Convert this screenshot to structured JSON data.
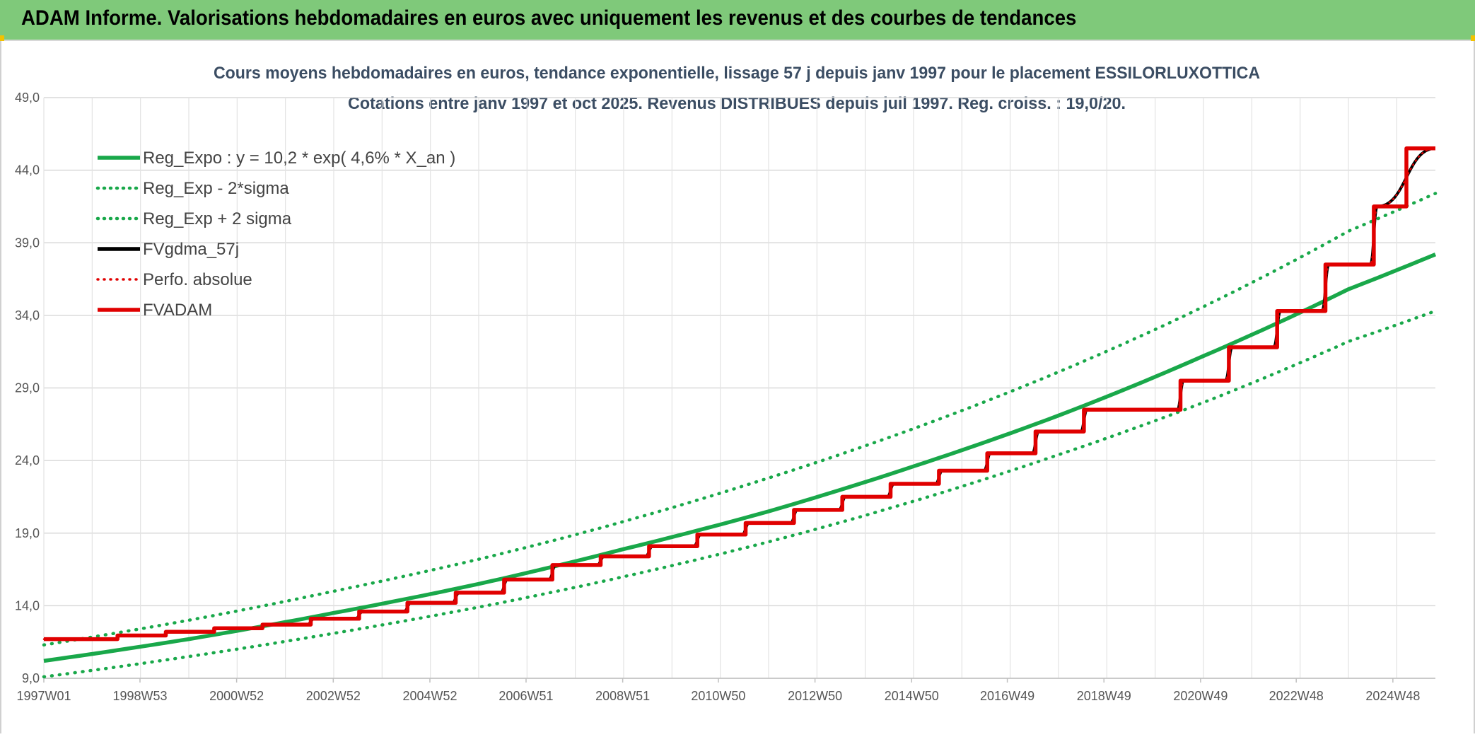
{
  "header": {
    "title": "ADAM Informe. Valorisations hebdomadaires en euros avec uniquement les revenus et des courbes de tendances"
  },
  "colors": {
    "header_bg": "#7fc97a",
    "green": "#19a84a",
    "black": "#000000",
    "red": "#e00000"
  },
  "chart_data": {
    "type": "line",
    "title": "Cours moyens hebdomadaires en euros, tendance exponentielle, lissage 57 j depuis janv 1997 pour le placement ESSILORLUXOTTICA",
    "subtitle": "Cotations entre janv 1997 et oct 2025. Revenus DISTRIBUES depuis juil 1997. Reg. croiss. : 19,0/20.",
    "xlabel": "",
    "ylabel": "",
    "x_range": [
      1997.0,
      2025.8
    ],
    "ylim": [
      9.0,
      49.0
    ],
    "y_ticks": [
      "9,0",
      "14,0",
      "19,0",
      "24,0",
      "29,0",
      "34,0",
      "39,0",
      "44,0",
      "49,0"
    ],
    "x_tick_labels": [
      {
        "label": "1997W01",
        "year": 1997.0
      },
      {
        "label": "1998W53",
        "year": 1998.99
      },
      {
        "label": "2000W52",
        "year": 2000.99
      },
      {
        "label": "2002W52",
        "year": 2002.99
      },
      {
        "label": "2004W52",
        "year": 2004.99
      },
      {
        "label": "2006W51",
        "year": 2006.98
      },
      {
        "label": "2008W51",
        "year": 2008.98
      },
      {
        "label": "2010W50",
        "year": 2010.96
      },
      {
        "label": "2012W50",
        "year": 2012.96
      },
      {
        "label": "2014W50",
        "year": 2014.96
      },
      {
        "label": "2016W49",
        "year": 2016.94
      },
      {
        "label": "2018W49",
        "year": 2018.94
      },
      {
        "label": "2020W49",
        "year": 2020.94
      },
      {
        "label": "2022W48",
        "year": 2022.92
      },
      {
        "label": "2024W48",
        "year": 2024.92
      }
    ],
    "grid": true,
    "legend_placement": "top-left",
    "series": [
      {
        "name": "Reg_Expo : y = 10,2 * exp( 4,6% *  X_an )",
        "color": "#19a84a",
        "style": "solid",
        "x": [
          1997.0,
          2000.0,
          2003.0,
          2006.0,
          2009.0,
          2012.0,
          2015.0,
          2018.0,
          2021.0,
          2024.0,
          2025.8
        ],
        "values": [
          10.2,
          11.7,
          13.5,
          15.5,
          17.9,
          20.5,
          23.6,
          27.1,
          31.2,
          35.8,
          38.2
        ]
      },
      {
        "name": "Reg_Exp - 2*sigma",
        "color": "#19a84a",
        "style": "dotted",
        "x": [
          1997.0,
          2000.0,
          2003.0,
          2006.0,
          2009.0,
          2012.0,
          2015.0,
          2018.0,
          2021.0,
          2024.0,
          2025.8
        ],
        "values": [
          9.1,
          10.5,
          12.1,
          13.9,
          16.0,
          18.4,
          21.2,
          24.4,
          28.0,
          32.2,
          34.3
        ]
      },
      {
        "name": "Reg_Exp + 2 sigma",
        "color": "#19a84a",
        "style": "dotted",
        "x": [
          1997.0,
          2000.0,
          2003.0,
          2006.0,
          2009.0,
          2012.0,
          2015.0,
          2018.0,
          2021.0,
          2024.0,
          2025.8
        ],
        "values": [
          11.3,
          13.0,
          15.0,
          17.2,
          19.8,
          22.8,
          26.2,
          30.1,
          34.6,
          39.8,
          42.4
        ]
      },
      {
        "name": "FVgdma_57j",
        "color": "#000000",
        "style": "solid",
        "x": [
          1997.0,
          1998.45,
          1998.6,
          1999.45,
          1999.6,
          2000.45,
          2000.6,
          2001.45,
          2001.6,
          2002.45,
          2002.6,
          2003.45,
          2003.6,
          2004.45,
          2004.6,
          2005.45,
          2005.6,
          2006.45,
          2006.6,
          2007.45,
          2007.6,
          2008.45,
          2008.6,
          2009.45,
          2009.6,
          2010.45,
          2010.6,
          2011.45,
          2011.6,
          2012.45,
          2012.6,
          2013.45,
          2013.6,
          2014.45,
          2014.6,
          2015.45,
          2015.6,
          2016.45,
          2016.6,
          2017.45,
          2017.6,
          2018.45,
          2018.6,
          2020.45,
          2020.6,
          2021.45,
          2021.6,
          2022.45,
          2022.6,
          2023.45,
          2023.6,
          2024.45,
          2024.6,
          2025.8
        ],
        "values": [
          11.7,
          11.7,
          11.95,
          11.95,
          12.2,
          12.2,
          12.45,
          12.45,
          12.7,
          12.7,
          13.1,
          13.1,
          13.6,
          13.6,
          14.2,
          14.2,
          14.9,
          14.9,
          15.8,
          15.8,
          16.8,
          16.8,
          17.4,
          17.4,
          18.1,
          18.1,
          18.9,
          18.9,
          19.7,
          19.7,
          20.6,
          20.6,
          21.5,
          21.5,
          22.4,
          22.4,
          23.3,
          23.3,
          24.5,
          24.5,
          26.0,
          26.0,
          27.5,
          27.5,
          29.5,
          29.5,
          31.8,
          31.8,
          34.3,
          34.3,
          37.5,
          37.5,
          41.5,
          45.5
        ]
      },
      {
        "name": "Perfo. absolue",
        "color": "#e00000",
        "style": "dotted",
        "x": [
          1997.0,
          1998.45,
          1998.6,
          1999.45,
          1999.6,
          2000.45,
          2000.6,
          2001.45,
          2001.6,
          2002.45,
          2002.6,
          2003.45,
          2003.6,
          2004.45,
          2004.6,
          2005.45,
          2005.6,
          2006.45,
          2006.6,
          2007.45,
          2007.6,
          2008.45,
          2008.6,
          2009.45,
          2009.6,
          2010.45,
          2010.6,
          2011.45,
          2011.6,
          2012.45,
          2012.6,
          2013.45,
          2013.6,
          2014.45,
          2014.6,
          2015.45,
          2015.6,
          2016.45,
          2016.6,
          2017.45,
          2017.6,
          2018.45,
          2018.6,
          2020.45,
          2020.6,
          2021.45,
          2021.6,
          2022.45,
          2022.6,
          2023.45,
          2023.6,
          2024.45,
          2024.6,
          2025.8
        ],
        "values": [
          11.7,
          11.7,
          11.95,
          11.95,
          12.2,
          12.2,
          12.45,
          12.45,
          12.7,
          12.7,
          13.1,
          13.1,
          13.6,
          13.6,
          14.2,
          14.2,
          14.9,
          14.9,
          15.8,
          15.8,
          16.8,
          16.8,
          17.4,
          17.4,
          18.1,
          18.1,
          18.9,
          18.9,
          19.7,
          19.7,
          20.6,
          20.6,
          21.5,
          21.5,
          22.4,
          22.4,
          23.3,
          23.3,
          24.5,
          24.5,
          26.0,
          26.0,
          27.5,
          27.5,
          29.5,
          29.5,
          31.8,
          31.8,
          34.3,
          34.3,
          37.5,
          37.5,
          41.5,
          45.5
        ]
      },
      {
        "name": "FVADAM",
        "color": "#e00000",
        "style": "step",
        "x": [
          1997.0,
          1998.45,
          1998.6,
          1999.45,
          1999.6,
          2000.45,
          2000.6,
          2001.45,
          2001.6,
          2002.45,
          2002.6,
          2003.45,
          2003.6,
          2004.45,
          2004.6,
          2005.45,
          2005.6,
          2006.45,
          2006.6,
          2007.45,
          2007.6,
          2008.45,
          2008.6,
          2009.45,
          2009.6,
          2010.45,
          2010.6,
          2011.45,
          2011.6,
          2012.45,
          2012.6,
          2013.45,
          2013.6,
          2014.45,
          2014.6,
          2015.45,
          2015.6,
          2016.45,
          2016.6,
          2017.45,
          2017.6,
          2018.45,
          2018.6,
          2020.45,
          2020.6,
          2021.45,
          2021.6,
          2022.45,
          2022.6,
          2023.45,
          2023.6,
          2024.45,
          2024.6,
          2025.8
        ],
        "values": [
          11.7,
          11.7,
          11.95,
          11.95,
          12.2,
          12.2,
          12.45,
          12.45,
          12.7,
          12.7,
          13.1,
          13.1,
          13.6,
          13.6,
          14.2,
          14.2,
          14.9,
          14.9,
          15.8,
          15.8,
          16.8,
          16.8,
          17.4,
          17.4,
          18.1,
          18.1,
          18.9,
          18.9,
          19.7,
          19.7,
          20.6,
          20.6,
          21.5,
          21.5,
          22.4,
          22.4,
          23.3,
          23.3,
          24.5,
          24.5,
          26.0,
          26.0,
          27.5,
          27.5,
          29.5,
          29.5,
          31.8,
          31.8,
          34.3,
          34.3,
          37.5,
          37.5,
          41.5,
          45.5
        ]
      }
    ]
  }
}
